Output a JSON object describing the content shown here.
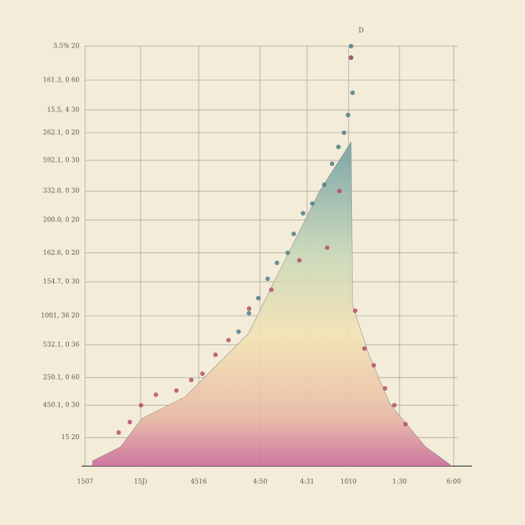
{
  "chart_data": [
    {
      "type": "area",
      "title": "D",
      "x": [
        1.9,
        9.5,
        15.2,
        21.0,
        26.7,
        34.3,
        43.8,
        53.3,
        62.9,
        71.4,
        71.8,
        76.2,
        81.9,
        91.4,
        98.1
      ],
      "values": [
        1.2,
        4.6,
        11.3,
        13.9,
        16.4,
        23.1,
        31.5,
        48.4,
        65.4,
        77.2,
        38.3,
        26.5,
        14.7,
        4.6,
        0.3
      ],
      "xlim": [
        0,
        100
      ],
      "ylim": [
        0,
        100
      ],
      "xticks": [
        {
          "value": 0,
          "label": "1507"
        },
        {
          "value": 14.9,
          "label": "15J)"
        },
        {
          "value": 30.5,
          "label": "4516"
        },
        {
          "value": 47,
          "label": "4:50"
        },
        {
          "value": 59.6,
          "label": "4:31"
        },
        {
          "value": 70.7,
          "label": "1010"
        },
        {
          "value": 84.4,
          "label": "1:30"
        },
        {
          "value": 99,
          "label": "6:00"
        }
      ],
      "yticks": [
        {
          "value": 100,
          "label": "3.5%   20"
        },
        {
          "value": 91.9,
          "label": "161.3, 0   60"
        },
        {
          "value": 84.8,
          "label": "15.5, 4   30"
        },
        {
          "value": 79.4,
          "label": "262.1, 0   20"
        },
        {
          "value": 72.8,
          "label": "592.1, 0   30"
        },
        {
          "value": 65.5,
          "label": "332.0, 0   30"
        },
        {
          "value": 58.6,
          "label": "200.0, 0   20"
        },
        {
          "value": 50.8,
          "label": "162.6, 0   20"
        },
        {
          "value": 43.9,
          "label": "154.7, 0   30"
        },
        {
          "value": 35.8,
          "label": "1001, 36   20"
        },
        {
          "value": 28.9,
          "label": "532.1, 0   36"
        },
        {
          "value": 21.1,
          "label": "250.1, 0   60"
        },
        {
          "value": 14.5,
          "label": "450.1, 0   30"
        },
        {
          "value": 6.8,
          "label": "15   20"
        }
      ],
      "grid": true
    },
    {
      "type": "scatter",
      "xlim": [
        0,
        100
      ],
      "ylim": [
        0,
        100
      ],
      "series": [
        {
          "color": "#4f7f86",
          "x": [
            71.4,
            71.4,
            71.8,
            70.6,
            69.5,
            68.0,
            66.3,
            64.2,
            61.0,
            58.5,
            56.0,
            54.4,
            51.5,
            49.0,
            46.5,
            44.0,
            41.2
          ],
          "values": [
            100,
            97.2,
            88.9,
            83.6,
            79.4,
            76.0,
            72.0,
            67.0,
            62.5,
            60.2,
            55.3,
            50.8,
            48.4,
            44.6,
            40.0,
            36.4,
            32.0
          ]
        },
        {
          "color": "#b4506a",
          "x": [
            71.4,
            68.3,
            65.0,
            57.5,
            50.0,
            44.0,
            38.5,
            35.0,
            31.5,
            28.5,
            24.5,
            19.0,
            15.0,
            12.0,
            9.0,
            75.0,
            77.5,
            80.5,
            83.0,
            86.0,
            72.5
          ],
          "values": [
            97.3,
            65.5,
            52.0,
            49.0,
            42.0,
            37.5,
            30.0,
            26.5,
            22.0,
            20.5,
            18.0,
            17.0,
            14.5,
            10.5,
            8.0,
            28.0,
            24.0,
            18.5,
            14.5,
            10.0,
            37.0
          ]
        }
      ]
    }
  ]
}
